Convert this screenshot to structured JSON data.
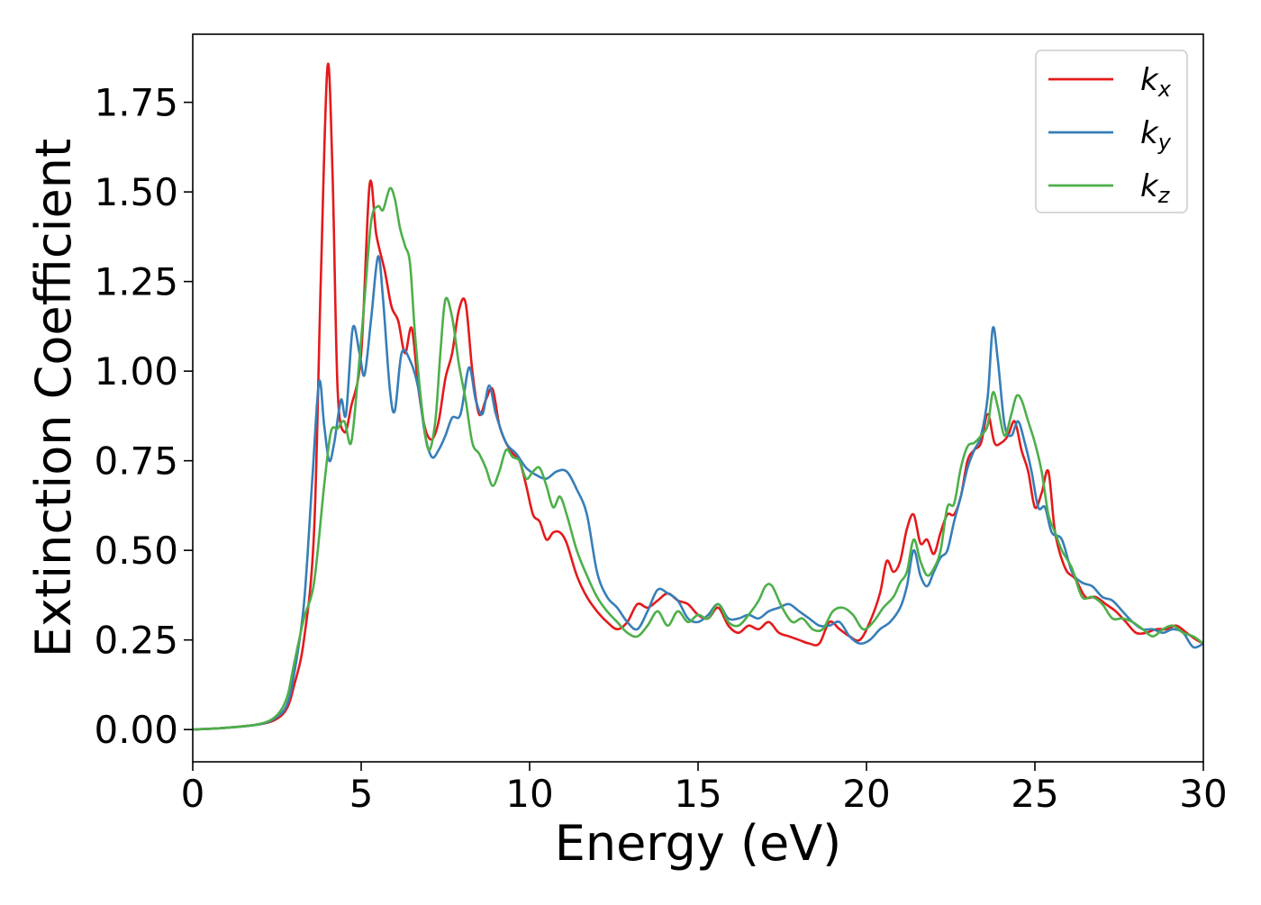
{
  "chart_data": {
    "type": "line",
    "title": "",
    "xlabel": "Energy (eV)",
    "ylabel": "Extinction Coefficient",
    "xlim": [
      0,
      30
    ],
    "ylim": [
      -0.09,
      1.94
    ],
    "xticks": [
      0,
      5,
      10,
      15,
      20,
      25,
      30
    ],
    "xtick_labels": [
      "0",
      "5",
      "10",
      "15",
      "20",
      "25",
      "30"
    ],
    "yticks": [
      0.0,
      0.25,
      0.5,
      0.75,
      1.0,
      1.25,
      1.5,
      1.75
    ],
    "ytick_labels": [
      "0.00",
      "0.25",
      "0.50",
      "0.75",
      "1.00",
      "1.25",
      "1.50",
      "1.75"
    ],
    "grid": false,
    "legend": {
      "position": "top-right"
    },
    "series": [
      {
        "name": "k",
        "subscript": "x",
        "color": "#e41a1c",
        "x": [
          0,
          1,
          2,
          2.5,
          2.8,
          3.0,
          3.3,
          3.6,
          3.8,
          4.0,
          4.15,
          4.3,
          4.5,
          4.7,
          5.0,
          5.25,
          5.45,
          5.7,
          5.9,
          6.1,
          6.3,
          6.5,
          6.7,
          6.9,
          7.1,
          7.3,
          7.5,
          7.7,
          7.9,
          8.1,
          8.3,
          8.5,
          8.7,
          8.9,
          9.1,
          9.3,
          9.5,
          9.7,
          9.9,
          10.1,
          10.3,
          10.5,
          10.7,
          10.9,
          11.1,
          11.4,
          11.7,
          12.0,
          12.3,
          12.6,
          12.9,
          13.2,
          13.5,
          13.8,
          14.1,
          14.4,
          14.7,
          15.0,
          15.3,
          15.6,
          15.9,
          16.2,
          16.5,
          16.8,
          17.1,
          17.4,
          17.7,
          18.0,
          18.3,
          18.6,
          18.9,
          19.2,
          19.5,
          19.8,
          20.1,
          20.4,
          20.6,
          20.8,
          21.0,
          21.2,
          21.4,
          21.6,
          21.8,
          22.0,
          22.2,
          22.4,
          22.6,
          22.8,
          23.0,
          23.2,
          23.4,
          23.6,
          23.8,
          24.0,
          24.2,
          24.4,
          24.6,
          24.8,
          25.0,
          25.2,
          25.4,
          25.6,
          25.9,
          26.2,
          26.5,
          26.8,
          27.1,
          27.4,
          27.7,
          28.0,
          28.3,
          28.6,
          28.9,
          29.2,
          29.5,
          29.8,
          30.0
        ],
        "y": [
          0.0,
          0.005,
          0.015,
          0.03,
          0.06,
          0.12,
          0.25,
          0.55,
          1.25,
          1.85,
          1.55,
          0.95,
          0.83,
          0.9,
          1.05,
          1.52,
          1.38,
          1.28,
          1.18,
          1.14,
          1.05,
          1.12,
          0.95,
          0.84,
          0.81,
          0.86,
          0.98,
          1.05,
          1.17,
          1.19,
          1.0,
          0.88,
          0.92,
          0.95,
          0.85,
          0.8,
          0.77,
          0.75,
          0.68,
          0.6,
          0.58,
          0.53,
          0.55,
          0.55,
          0.52,
          0.43,
          0.37,
          0.33,
          0.3,
          0.28,
          0.3,
          0.35,
          0.34,
          0.36,
          0.38,
          0.36,
          0.35,
          0.32,
          0.31,
          0.34,
          0.29,
          0.27,
          0.29,
          0.28,
          0.3,
          0.27,
          0.26,
          0.25,
          0.24,
          0.24,
          0.3,
          0.28,
          0.26,
          0.25,
          0.3,
          0.38,
          0.47,
          0.44,
          0.47,
          0.56,
          0.6,
          0.52,
          0.53,
          0.49,
          0.55,
          0.6,
          0.6,
          0.65,
          0.75,
          0.78,
          0.8,
          0.88,
          0.8,
          0.8,
          0.82,
          0.86,
          0.78,
          0.72,
          0.62,
          0.66,
          0.72,
          0.55,
          0.45,
          0.42,
          0.37,
          0.37,
          0.35,
          0.33,
          0.3,
          0.27,
          0.27,
          0.28,
          0.28,
          0.29,
          0.27,
          0.25,
          0.24
        ]
      },
      {
        "name": "k",
        "subscript": "y",
        "color": "#377eb8",
        "x": [
          0,
          1,
          2,
          2.5,
          2.8,
          3.0,
          3.3,
          3.55,
          3.75,
          3.9,
          4.05,
          4.2,
          4.4,
          4.55,
          4.75,
          4.95,
          5.1,
          5.3,
          5.5,
          5.65,
          5.85,
          6.0,
          6.2,
          6.45,
          6.7,
          6.9,
          7.1,
          7.3,
          7.5,
          7.7,
          7.95,
          8.2,
          8.4,
          8.6,
          8.8,
          9.0,
          9.3,
          9.6,
          9.9,
          10.2,
          10.5,
          10.8,
          11.1,
          11.4,
          11.7,
          12.0,
          12.3,
          12.6,
          12.9,
          13.2,
          13.5,
          13.8,
          14.1,
          14.4,
          14.7,
          15.0,
          15.3,
          15.6,
          15.9,
          16.2,
          16.5,
          16.8,
          17.1,
          17.4,
          17.7,
          18.0,
          18.3,
          18.6,
          18.9,
          19.2,
          19.5,
          19.8,
          20.1,
          20.4,
          20.7,
          21.0,
          21.2,
          21.4,
          21.6,
          21.8,
          22.0,
          22.2,
          22.4,
          22.6,
          22.8,
          23.0,
          23.2,
          23.4,
          23.6,
          23.75,
          23.9,
          24.1,
          24.3,
          24.5,
          24.7,
          24.9,
          25.1,
          25.3,
          25.5,
          25.8,
          26.1,
          26.4,
          26.7,
          27.0,
          27.3,
          27.6,
          27.9,
          28.2,
          28.5,
          28.8,
          29.1,
          29.4,
          29.7,
          30.0
        ],
        "y": [
          0.0,
          0.005,
          0.015,
          0.035,
          0.07,
          0.15,
          0.35,
          0.7,
          0.97,
          0.85,
          0.75,
          0.8,
          0.92,
          0.88,
          1.12,
          1.05,
          0.99,
          1.15,
          1.32,
          1.2,
          0.95,
          0.89,
          1.05,
          1.03,
          0.95,
          0.82,
          0.76,
          0.78,
          0.82,
          0.87,
          0.88,
          1.01,
          0.92,
          0.88,
          0.96,
          0.88,
          0.8,
          0.77,
          0.73,
          0.71,
          0.7,
          0.72,
          0.72,
          0.67,
          0.6,
          0.44,
          0.37,
          0.34,
          0.3,
          0.28,
          0.33,
          0.39,
          0.38,
          0.36,
          0.31,
          0.3,
          0.32,
          0.35,
          0.31,
          0.31,
          0.32,
          0.31,
          0.33,
          0.34,
          0.35,
          0.33,
          0.31,
          0.29,
          0.29,
          0.3,
          0.26,
          0.24,
          0.25,
          0.28,
          0.3,
          0.34,
          0.4,
          0.5,
          0.43,
          0.4,
          0.44,
          0.48,
          0.5,
          0.58,
          0.65,
          0.73,
          0.78,
          0.82,
          0.93,
          1.12,
          1.03,
          0.85,
          0.82,
          0.86,
          0.8,
          0.72,
          0.62,
          0.62,
          0.55,
          0.53,
          0.44,
          0.41,
          0.4,
          0.37,
          0.36,
          0.33,
          0.3,
          0.28,
          0.28,
          0.27,
          0.28,
          0.27,
          0.23,
          0.24
        ]
      },
      {
        "name": "k",
        "subscript": "z",
        "color": "#4daf4a",
        "x": [
          0,
          1,
          2,
          2.5,
          2.8,
          3.0,
          3.3,
          3.6,
          3.9,
          4.1,
          4.3,
          4.5,
          4.7,
          4.9,
          5.1,
          5.3,
          5.5,
          5.65,
          5.85,
          6.0,
          6.15,
          6.3,
          6.45,
          6.6,
          6.8,
          7.0,
          7.2,
          7.35,
          7.5,
          7.7,
          7.9,
          8.1,
          8.3,
          8.5,
          8.7,
          8.9,
          9.1,
          9.3,
          9.5,
          9.7,
          9.9,
          10.1,
          10.3,
          10.5,
          10.7,
          10.9,
          11.1,
          11.4,
          11.7,
          12.0,
          12.3,
          12.6,
          12.9,
          13.2,
          13.5,
          13.8,
          14.1,
          14.4,
          14.7,
          15.0,
          15.3,
          15.6,
          15.9,
          16.2,
          16.5,
          16.8,
          17.0,
          17.2,
          17.5,
          17.8,
          18.1,
          18.4,
          18.7,
          19.0,
          19.3,
          19.6,
          19.9,
          20.2,
          20.5,
          20.8,
          21.0,
          21.2,
          21.4,
          21.6,
          21.8,
          22.0,
          22.2,
          22.4,
          22.6,
          22.8,
          23.0,
          23.2,
          23.4,
          23.6,
          23.75,
          23.9,
          24.1,
          24.3,
          24.45,
          24.6,
          24.8,
          25.0,
          25.2,
          25.4,
          25.6,
          25.8,
          26.1,
          26.4,
          26.7,
          27.0,
          27.3,
          27.6,
          27.9,
          28.2,
          28.5,
          28.8,
          29.1,
          29.4,
          29.7,
          30.0
        ],
        "y": [
          0.0,
          0.005,
          0.016,
          0.04,
          0.09,
          0.18,
          0.31,
          0.41,
          0.68,
          0.83,
          0.84,
          0.86,
          0.8,
          0.98,
          1.2,
          1.42,
          1.46,
          1.45,
          1.51,
          1.48,
          1.4,
          1.35,
          1.3,
          1.1,
          0.9,
          0.78,
          0.86,
          1.05,
          1.2,
          1.15,
          1.02,
          0.92,
          0.8,
          0.77,
          0.73,
          0.68,
          0.72,
          0.78,
          0.76,
          0.75,
          0.7,
          0.72,
          0.73,
          0.68,
          0.62,
          0.65,
          0.6,
          0.5,
          0.43,
          0.37,
          0.33,
          0.3,
          0.27,
          0.26,
          0.29,
          0.33,
          0.29,
          0.33,
          0.3,
          0.32,
          0.31,
          0.35,
          0.3,
          0.29,
          0.32,
          0.36,
          0.4,
          0.4,
          0.34,
          0.3,
          0.31,
          0.28,
          0.28,
          0.33,
          0.34,
          0.32,
          0.28,
          0.3,
          0.34,
          0.37,
          0.41,
          0.44,
          0.53,
          0.47,
          0.43,
          0.45,
          0.5,
          0.62,
          0.63,
          0.73,
          0.79,
          0.8,
          0.82,
          0.85,
          0.94,
          0.9,
          0.82,
          0.88,
          0.93,
          0.92,
          0.86,
          0.8,
          0.72,
          0.6,
          0.55,
          0.5,
          0.45,
          0.37,
          0.37,
          0.35,
          0.31,
          0.31,
          0.3,
          0.28,
          0.26,
          0.28,
          0.29,
          0.27,
          0.26,
          0.24
        ]
      }
    ]
  }
}
